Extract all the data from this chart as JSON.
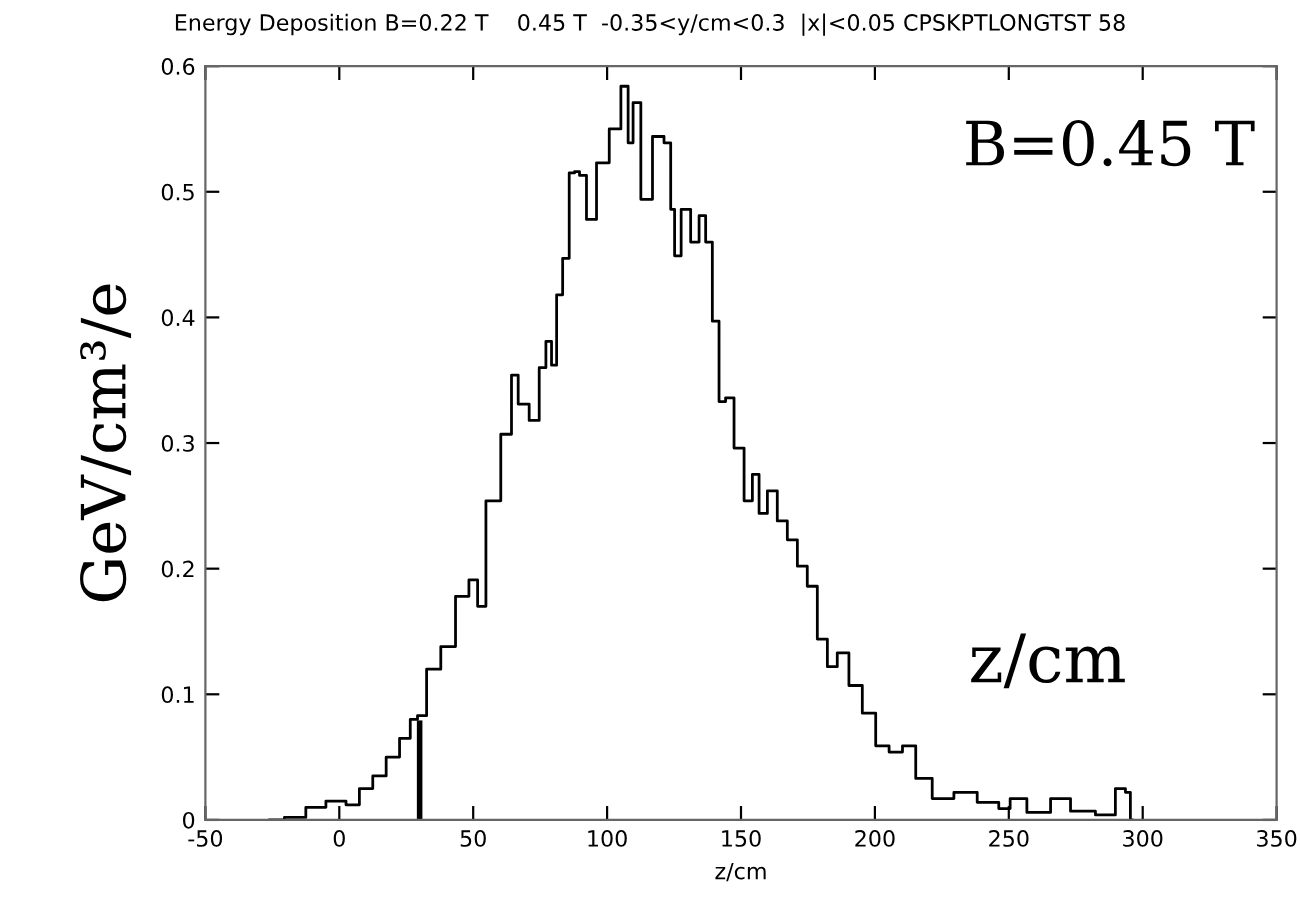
{
  "chart_data": {
    "type": "step",
    "title": "Energy Deposition B=0.22 T    0.45 T  -0.35<y/cm<0.3  |x|<0.05 CPSKPTLONGTST 58",
    "xlabel": "z/cm",
    "ylabel": "GeV/cm³/e",
    "annotations": [
      "B=0.45 T",
      "z/cm"
    ],
    "xlim": [
      -50,
      350
    ],
    "ylim": [
      0,
      0.6
    ],
    "xticks": [
      -50,
      0,
      50,
      100,
      150,
      200,
      250,
      300,
      350
    ],
    "yticks": [
      0,
      0.1,
      0.2,
      0.3,
      0.4,
      0.5,
      0.6
    ],
    "grid": false,
    "legend": false,
    "series": [
      {
        "color": "#000000",
        "x": [
          -26,
          -15,
          -10,
          0,
          5,
          10,
          15,
          20,
          25,
          28,
          30.4,
          34.8,
          41,
          45.8,
          51,
          52.3,
          57.2,
          63.4,
          65.2,
          68.4,
          73.4,
          75.9,
          78.4,
          80.1,
          82.2,
          84.6,
          87.1,
          88.6,
          90.8,
          93.8,
          98.3,
          103.3,
          107,
          108.7,
          110.7,
          114.5,
          119.4,
          123.1,
          124.4,
          126,
          129.3,
          133.1,
          135.6,
          138,
          140.6,
          143,
          145.5,
          149.3,
          153,
          155.5,
          158,
          161.7,
          165.4,
          169.2,
          172.9,
          176.6,
          180.4,
          184.1,
          187.8,
          192.8,
          197.8,
          202.8,
          207.8,
          212.8,
          217.7,
          225.1,
          233.9,
          242.5,
          250,
          251,
          262.5,
          268.7,
          277.4,
          287.3,
          292.3,
          294.8,
          296
        ],
        "values": [
          0,
          0.002,
          0.01,
          0.015,
          0.012,
          0.025,
          0.035,
          0.05,
          0.065,
          0.08,
          0.083,
          0.12,
          0.138,
          0.178,
          0.191,
          0.17,
          0.254,
          0.307,
          0.354,
          0.331,
          0.318,
          0.36,
          0.381,
          0.362,
          0.418,
          0.447,
          0.515,
          0.516,
          0.513,
          0.478,
          0.523,
          0.55,
          0.584,
          0.539,
          0.571,
          0.494,
          0.544,
          0.539,
          0.486,
          0.449,
          0.486,
          0.46,
          0.481,
          0.46,
          0.397,
          0.333,
          0.336,
          0.296,
          0.254,
          0.275,
          0.244,
          0.262,
          0.238,
          0.223,
          0.202,
          0.186,
          0.144,
          0.122,
          0.133,
          0.107,
          0.085,
          0.059,
          0.054,
          0.059,
          0.033,
          0.017,
          0.022,
          0.014,
          0.009,
          0.017,
          0.006,
          0.017,
          0.007,
          0.004,
          0.025,
          0.022,
          0
        ]
      },
      {
        "type": "line",
        "color": "#000000",
        "x": [
          30,
          30
        ],
        "values": [
          0,
          0.077
        ]
      }
    ]
  }
}
